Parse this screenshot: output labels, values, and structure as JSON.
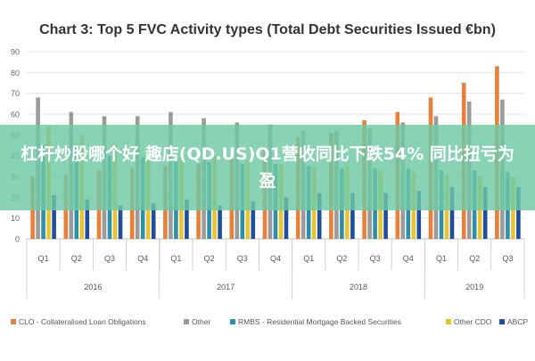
{
  "banner": {
    "text": "杠杆炒股哪个好 趣店(QD.US)Q1营收同比下跌54% 同比扭亏为盈"
  },
  "chart_data": {
    "type": "bar",
    "title": "Chart 3: Top 5 FVC Activity types (Total Debt Securities Issued €bn)",
    "ylim": [
      0,
      90
    ],
    "yticks": [
      0,
      10,
      20,
      30,
      40,
      50,
      60,
      70,
      80,
      90
    ],
    "grid": true,
    "legend_position": "bottom",
    "categories": [
      "Q1",
      "Q2",
      "Q3",
      "Q4",
      "Q1",
      "Q2",
      "Q3",
      "Q4",
      "Q1",
      "Q2",
      "Q3",
      "Q4",
      "Q1",
      "Q2",
      "Q3"
    ],
    "years": [
      {
        "label": "2016",
        "span": 4
      },
      {
        "label": "2017",
        "span": 4
      },
      {
        "label": "2018",
        "span": 4
      },
      {
        "label": "2019",
        "span": 3
      }
    ],
    "series": [
      {
        "name": "CLO - Collateralised Loan Obligations",
        "color": "#e8803a",
        "values": [
          30,
          31,
          33,
          34,
          35,
          36,
          40,
          44,
          49,
          51,
          57,
          61,
          68,
          75,
          83
        ]
      },
      {
        "name": "Other",
        "color": "#9b9b9b",
        "values": [
          68,
          61,
          59,
          59,
          61,
          58,
          56,
          55,
          52,
          52,
          53,
          56,
          59,
          66,
          67
        ]
      },
      {
        "name": "RMBS - Residential Mortgage Backed Securities",
        "color": "#2e8fa8",
        "values": [
          45,
          44,
          40,
          39,
          38,
          37,
          36,
          36,
          35,
          34,
          34,
          34,
          33,
          33,
          32
        ]
      },
      {
        "name": "Other CDO",
        "color": "#e7c530",
        "values": [
          54,
          50,
          46,
          44,
          42,
          40,
          38,
          36,
          35,
          35,
          33,
          32,
          31,
          30,
          30
        ]
      },
      {
        "name": "ABCP",
        "color": "#1f4e9c",
        "values": [
          21,
          19,
          16,
          17,
          19,
          16,
          18,
          20,
          22,
          22,
          22,
          23,
          25,
          25,
          25
        ]
      }
    ]
  }
}
